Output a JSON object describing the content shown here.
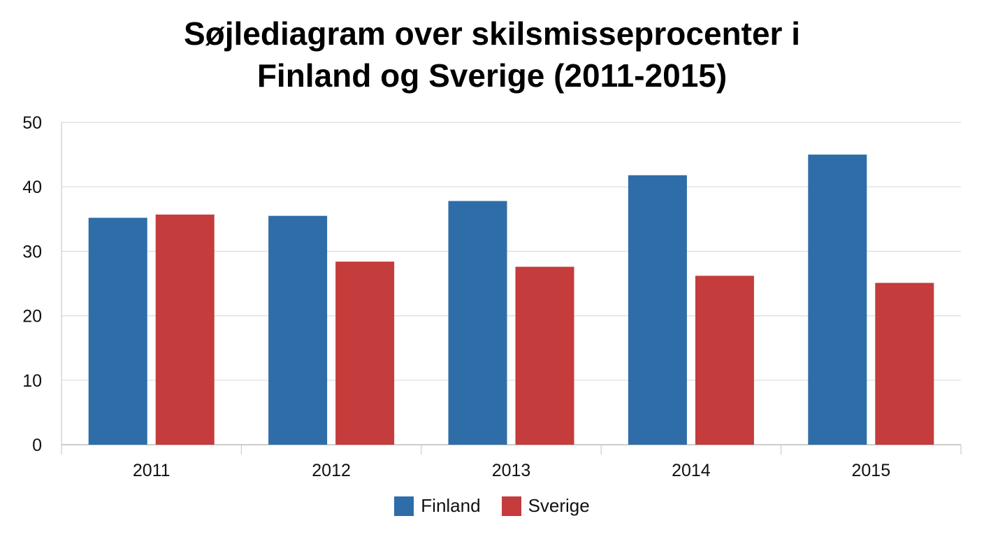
{
  "chart_data": {
    "type": "bar",
    "title_lines": [
      "Søjlediagram over skilsmisseprocenter i",
      "Finland og Sverige (2011-2015)"
    ],
    "xlabel": "",
    "ylabel": "",
    "categories": [
      "2011",
      "2012",
      "2013",
      "2014",
      "2015"
    ],
    "series": [
      {
        "name": "Finland",
        "color": "#2e6da8",
        "values": [
          35.2,
          35.5,
          37.8,
          41.8,
          45.0
        ]
      },
      {
        "name": "Sverige",
        "color": "#c43c3b",
        "values": [
          35.7,
          28.4,
          27.6,
          26.2,
          25.1
        ]
      }
    ],
    "ylim": [
      0,
      50
    ],
    "yticks": [
      "0",
      "10",
      "20",
      "30",
      "40",
      "50"
    ],
    "grid": true,
    "legend_position": "bottom-center"
  }
}
